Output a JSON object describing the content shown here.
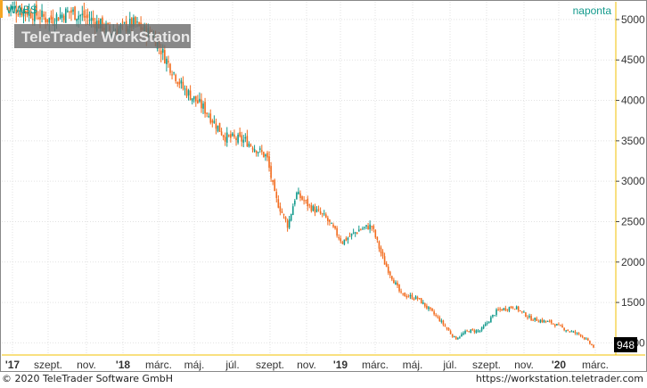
{
  "chart_data": {
    "type": "candlestick",
    "symbol": "WABS",
    "period": "naponta",
    "watermark": "TeleTrader WorkStation",
    "y_ticks": [
      1000,
      1500,
      2000,
      2500,
      3000,
      3500,
      4000,
      4500,
      5000
    ],
    "ylim": [
      850,
      5220
    ],
    "x_months": [
      "'17",
      "szept.",
      "nov.",
      "'18",
      "márc.",
      "máj.",
      "júl.",
      "szept.",
      "nov.",
      "'19",
      "márc.",
      "máj.",
      "júl.",
      "szept.",
      "nov.",
      "'20",
      "márc."
    ],
    "last_price": "948",
    "price_path": [
      [
        0,
        5150
      ],
      [
        5,
        5100
      ],
      [
        10,
        5000
      ],
      [
        15,
        5100
      ],
      [
        20,
        5000
      ],
      [
        25,
        4850
      ],
      [
        30,
        4950
      ],
      [
        35,
        4800
      ],
      [
        38,
        4500
      ],
      [
        42,
        4150
      ],
      [
        47,
        3900
      ],
      [
        52,
        3550
      ],
      [
        57,
        3500
      ],
      [
        62,
        3300
      ],
      [
        64,
        2800
      ],
      [
        67,
        2450
      ],
      [
        69,
        2850
      ],
      [
        72,
        2700
      ],
      [
        76,
        2550
      ],
      [
        80,
        2250
      ],
      [
        84,
        2400
      ],
      [
        87,
        2450
      ],
      [
        90,
        2000
      ],
      [
        94,
        1600
      ],
      [
        98,
        1550
      ],
      [
        103,
        1300
      ],
      [
        107,
        1050
      ],
      [
        110,
        1150
      ],
      [
        113,
        1150
      ],
      [
        117,
        1400
      ],
      [
        121,
        1450
      ],
      [
        125,
        1300
      ],
      [
        130,
        1250
      ],
      [
        134,
        1150
      ],
      [
        137,
        1100
      ],
      [
        140,
        948
      ]
    ]
  },
  "footer": {
    "copyright": "© 2020 TeleTrader Software GmbH",
    "website": "https://workstation.teletrader.com"
  }
}
